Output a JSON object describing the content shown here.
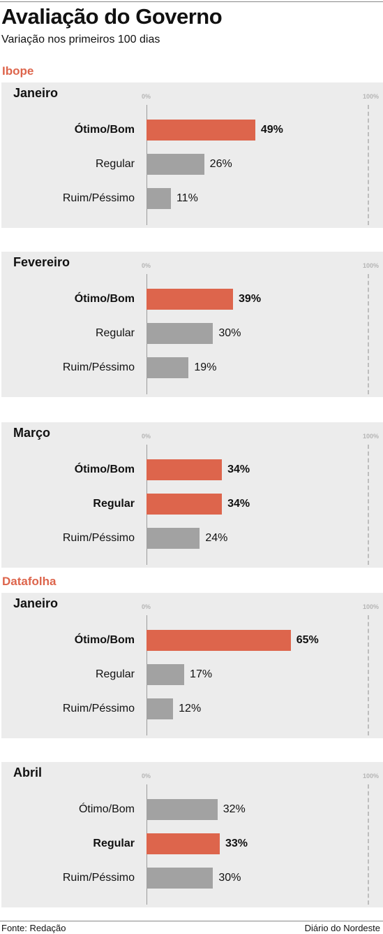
{
  "title": "Avaliação do Governo",
  "subtitle": "Variação nos primeiros 100 dias",
  "footer": {
    "source": "Fonte: Redação",
    "credit": "Diário do Nordeste"
  },
  "colors": {
    "highlight": "#dd654c",
    "neutral": "#a2a2a2",
    "section": "#dd654c",
    "panel": "#ececec"
  },
  "chart_data": {
    "type": "bar",
    "orientation": "horizontal",
    "unit": "%",
    "axis_labels": [
      "0%",
      "100%"
    ],
    "xlim": [
      0,
      100
    ],
    "grid": false,
    "categories": [
      "Ótimo/Bom",
      "Regular",
      "Ruim/Péssimo"
    ],
    "groups": [
      {
        "section": "Ibope",
        "panels": [
          {
            "month": "Janeiro",
            "values": [
              49,
              26,
              11
            ],
            "value_labels": [
              "49%",
              "26%",
              "11%"
            ],
            "highlight": [
              true,
              false,
              false
            ]
          },
          {
            "month": "Fevereiro",
            "values": [
              39,
              30,
              19
            ],
            "value_labels": [
              "39%",
              "30%",
              "19%"
            ],
            "highlight": [
              true,
              false,
              false
            ]
          },
          {
            "month": "Março",
            "values": [
              34,
              34,
              24
            ],
            "value_labels": [
              "34%",
              "34%",
              "24%"
            ],
            "highlight": [
              true,
              true,
              false
            ]
          }
        ]
      },
      {
        "section": "Datafolha",
        "panels": [
          {
            "month": "Janeiro",
            "values": [
              65,
              17,
              12
            ],
            "value_labels": [
              "65%",
              "17%",
              "12%"
            ],
            "highlight": [
              true,
              false,
              false
            ]
          },
          {
            "month": "Abril",
            "values": [
              32,
              33,
              30
            ],
            "value_labels": [
              "32%",
              "33%",
              "30%"
            ],
            "highlight": [
              false,
              true,
              false
            ]
          }
        ]
      }
    ]
  }
}
